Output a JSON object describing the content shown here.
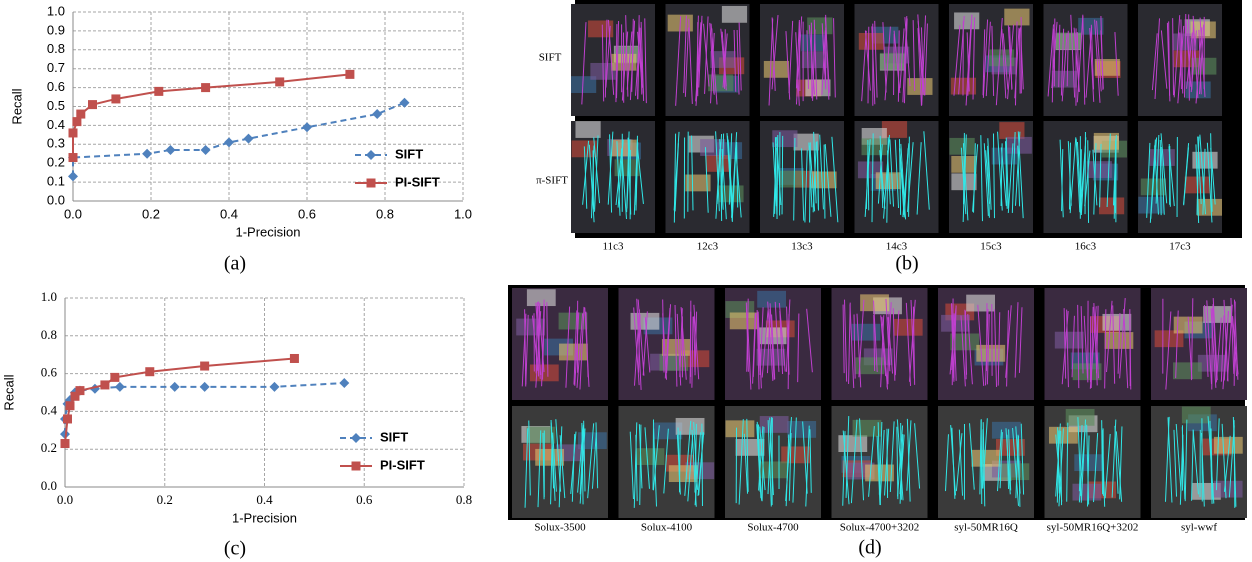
{
  "chart_data": [
    {
      "type": "line",
      "caption": "(a)",
      "x_label": "1-Precision",
      "y_label": "Recall",
      "xlim": [
        0,
        1
      ],
      "ylim": [
        0,
        1
      ],
      "grid": true,
      "xticks": [
        {
          "value": 0,
          "label": "0.0"
        },
        0.2,
        0.4,
        0.6,
        0.8,
        {
          "value": 1,
          "label": "1.0"
        }
      ],
      "yticks": [
        {
          "value": 0,
          "label": "0.0"
        },
        0.1,
        0.2,
        0.3,
        0.4,
        0.5,
        0.6,
        0.7,
        0.8,
        0.9,
        {
          "value": 1,
          "label": "1.0"
        }
      ],
      "series": [
        {
          "name": "SIFT",
          "color": "#4f81bd",
          "dashed": true,
          "x": [
            0.0,
            0.0,
            0.19,
            0.25,
            0.34,
            0.4,
            0.45,
            0.6,
            0.78,
            0.85
          ],
          "values": [
            0.13,
            0.23,
            0.25,
            0.27,
            0.27,
            0.31,
            0.33,
            0.39,
            0.46,
            0.52
          ]
        },
        {
          "name": "PI-SIFT",
          "color": "#c0504d",
          "dashed": false,
          "x": [
            0.0,
            0.0,
            0.01,
            0.02,
            0.05,
            0.11,
            0.22,
            0.34,
            0.53,
            0.71
          ],
          "values": [
            0.23,
            0.36,
            0.42,
            0.46,
            0.51,
            0.54,
            0.58,
            0.6,
            0.63,
            0.67
          ]
        }
      ]
    },
    {
      "type": "line",
      "caption": "(c)",
      "x_label": "1-Precision",
      "y_label": "Recall",
      "xlim": [
        0,
        0.8
      ],
      "ylim": [
        0,
        1
      ],
      "grid": true,
      "xticks": [
        {
          "value": 0,
          "label": "0.0"
        },
        0.2,
        0.4,
        0.6,
        0.8
      ],
      "yticks": [
        {
          "value": 0,
          "label": "0.0"
        },
        0.2,
        0.4,
        0.6,
        0.8,
        {
          "value": 1,
          "label": "1.0"
        }
      ],
      "series": [
        {
          "name": "SIFT",
          "color": "#4f81bd",
          "dashed": true,
          "x": [
            0.0,
            0.0,
            0.005,
            0.01,
            0.02,
            0.03,
            0.06,
            0.11,
            0.22,
            0.28,
            0.42,
            0.56
          ],
          "values": [
            0.28,
            0.36,
            0.44,
            0.46,
            0.5,
            0.51,
            0.52,
            0.53,
            0.53,
            0.53,
            0.53,
            0.55
          ]
        },
        {
          "name": "PI-SIFT",
          "color": "#c0504d",
          "dashed": false,
          "x": [
            0.0,
            0.005,
            0.01,
            0.02,
            0.03,
            0.08,
            0.1,
            0.17,
            0.28,
            0.46
          ],
          "values": [
            0.23,
            0.36,
            0.43,
            0.48,
            0.51,
            0.54,
            0.58,
            0.61,
            0.64,
            0.68
          ]
        }
      ]
    }
  ],
  "figure_b": {
    "caption": "(b)",
    "row_labels": [
      "SIFT",
      "π-SIFT"
    ],
    "column_labels": [
      "11c3",
      "12c3",
      "13c3",
      "14c3",
      "15c3",
      "16c3",
      "17c3"
    ]
  },
  "figure_d": {
    "caption": "(d)",
    "column_labels": [
      "Solux-3500",
      "Solux-4100",
      "Solux-4700",
      "Solux-4700+3202",
      "syl-50MR16Q",
      "syl-50MR16Q+3202",
      "syl-wwf"
    ]
  }
}
